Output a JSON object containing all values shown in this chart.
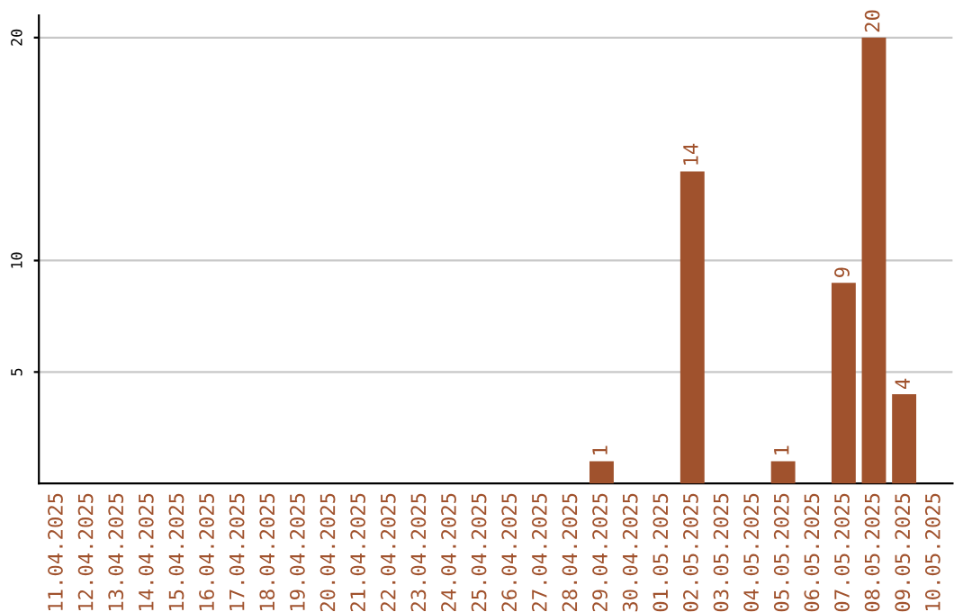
{
  "chart_data": {
    "type": "bar",
    "categories": [
      "11.04.2025",
      "12.04.2025",
      "13.04.2025",
      "14.04.2025",
      "15.04.2025",
      "16.04.2025",
      "17.04.2025",
      "18.04.2025",
      "19.04.2025",
      "20.04.2025",
      "21.04.2025",
      "22.04.2025",
      "23.04.2025",
      "24.04.2025",
      "25.04.2025",
      "26.04.2025",
      "27.04.2025",
      "28.04.2025",
      "29.04.2025",
      "30.04.2025",
      "01.05.2025",
      "02.05.2025",
      "03.05.2025",
      "04.05.2025",
      "05.05.2025",
      "06.05.2025",
      "07.05.2025",
      "08.05.2025",
      "09.05.2025",
      "10.05.2025"
    ],
    "values": [
      0,
      0,
      0,
      0,
      0,
      0,
      0,
      0,
      0,
      0,
      0,
      0,
      0,
      0,
      0,
      0,
      0,
      0,
      1,
      0,
      0,
      14,
      0,
      0,
      1,
      0,
      9,
      20,
      4,
      0
    ],
    "value_labels": [
      null,
      null,
      null,
      null,
      null,
      null,
      null,
      null,
      null,
      null,
      null,
      null,
      null,
      null,
      null,
      null,
      null,
      null,
      "1",
      null,
      null,
      "14",
      null,
      null,
      "1",
      null,
      "9",
      "20",
      "4",
      null
    ],
    "color": "#a0522d",
    "ylim": [
      0,
      21
    ],
    "yticks": [
      5,
      10,
      20
    ],
    "grid": "y"
  }
}
